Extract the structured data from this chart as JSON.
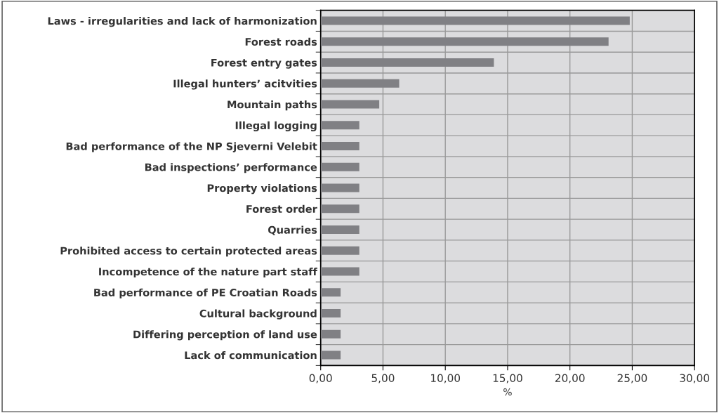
{
  "chart_data": {
    "type": "bar",
    "orientation": "horizontal",
    "xlabel": "%",
    "categories": [
      "Laws - irregularities and lack of harmonization",
      "Forest roads",
      "Forest entry gates",
      "Illegal hunters’ acitvities",
      "Mountain paths",
      "Illegal logging",
      "Bad performance of the NP Sjeverni Velebit",
      "Bad inspections’ performance",
      "Property violations",
      "Forest order",
      "Quarries",
      "Prohibited access to certain protected areas",
      "Incompetence of the nature part staff",
      "Bad performance of PE Croatian Roads",
      "Cultural background",
      "Differing perception of land use",
      "Lack of communication"
    ],
    "values": [
      24.8,
      23.1,
      13.9,
      6.3,
      4.7,
      3.1,
      3.1,
      3.1,
      3.1,
      3.1,
      3.1,
      3.1,
      3.1,
      1.6,
      1.6,
      1.6,
      1.6
    ],
    "color": "#808084",
    "xlim": [
      0,
      30
    ],
    "xticks": [
      {
        "value": 0,
        "label": "0,00"
      },
      {
        "value": 5,
        "label": "5,00"
      },
      {
        "value": 10,
        "label": "10,00"
      },
      {
        "value": 15,
        "label": "15,00"
      },
      {
        "value": 20,
        "label": "20,00"
      },
      {
        "value": 25,
        "label": "25,00"
      },
      {
        "value": 30,
        "label": "30,00"
      }
    ],
    "grid": true
  }
}
